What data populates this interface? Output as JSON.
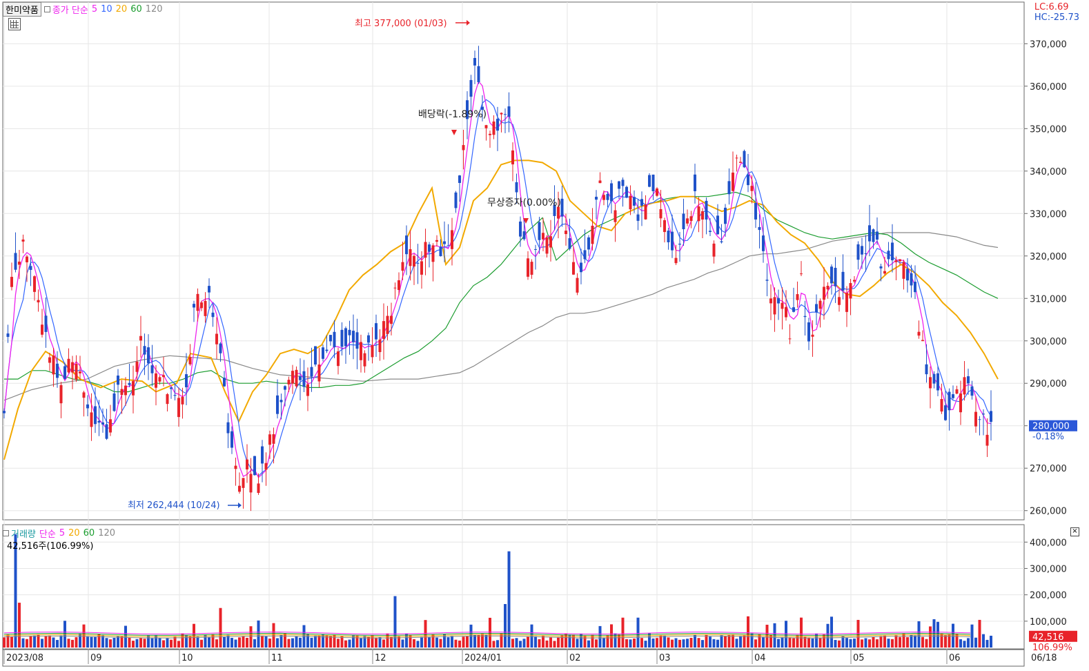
{
  "header": {
    "stock_name": "한미약품",
    "price_label": "종가 단순",
    "ma_periods": [
      "5",
      "10",
      "20",
      "60",
      "120"
    ]
  },
  "volume_header": {
    "title": "거래량",
    "ma_label": "단순",
    "ma_periods": [
      "5",
      "20",
      "60",
      "120"
    ],
    "info": "42,516주(106.99%)"
  },
  "lc_hc": {
    "lc": "LC:6.69",
    "hc": "HC:-25.73"
  },
  "colors": {
    "up": "#e8232a",
    "down": "#1f52c9",
    "ma5": "#ee22ee",
    "ma10": "#3366ff",
    "ma20": "#f2a900",
    "ma60": "#1a9c2e",
    "ma120": "#888888",
    "price_box": "#2b57d8",
    "vol_box": "#e8232a"
  },
  "current": {
    "price": "280,000",
    "change": "-0.18%",
    "volume": "42,516",
    "volume_ratio": "106.99%"
  },
  "chart_data": {
    "type": "candlestick",
    "x_axis_labels": [
      "2023/08",
      "09",
      "10",
      "11",
      "12",
      "2024/01",
      "02",
      "03",
      "04",
      "05",
      "06"
    ],
    "x_axis_end": "06/18",
    "price_ticks": [
      "370,000",
      "360,000",
      "350,000",
      "340,000",
      "330,000",
      "320,000",
      "310,000",
      "300,000",
      "290,000",
      "280,000",
      "270,000",
      "260,000"
    ],
    "price_ylim": [
      258000,
      379000
    ],
    "volume_ticks": [
      "400,000",
      "300,000",
      "200,000",
      "100,000"
    ],
    "volume_ylim": [
      0,
      440000
    ],
    "annotations": {
      "high": "최고 377,000 (01/03)",
      "low": "최저 262,444 (10/24)",
      "dividend": "배당락(-1.89%)",
      "bonus": "무상증자(0.00%)"
    },
    "ma_series": {
      "ma20": [
        [
          0,
          272000
        ],
        [
          20,
          284000
        ],
        [
          40,
          293000
        ],
        [
          60,
          297500
        ],
        [
          85,
          295000
        ],
        [
          110,
          291000
        ],
        [
          140,
          289000
        ],
        [
          170,
          291000
        ],
        [
          200,
          290500
        ],
        [
          220,
          288000
        ],
        [
          250,
          290000
        ],
        [
          270,
          297000
        ],
        [
          300,
          296000
        ],
        [
          320,
          288000
        ],
        [
          340,
          281000
        ],
        [
          360,
          288000
        ],
        [
          380,
          292000
        ],
        [
          400,
          297000
        ],
        [
          420,
          298000
        ],
        [
          440,
          297000
        ],
        [
          460,
          299000
        ],
        [
          480,
          305000
        ],
        [
          500,
          312000
        ],
        [
          520,
          315500
        ],
        [
          540,
          318000
        ],
        [
          560,
          321000
        ],
        [
          580,
          323000
        ],
        [
          600,
          330000
        ],
        [
          620,
          336000
        ],
        [
          640,
          318000
        ],
        [
          660,
          322000
        ],
        [
          680,
          333000
        ],
        [
          700,
          336000
        ],
        [
          720,
          341500
        ],
        [
          740,
          342500
        ],
        [
          760,
          342500
        ],
        [
          780,
          342000
        ],
        [
          800,
          340000
        ],
        [
          820,
          333000
        ],
        [
          840,
          330000
        ],
        [
          860,
          327000
        ],
        [
          880,
          326000
        ],
        [
          900,
          330000
        ],
        [
          920,
          331500
        ],
        [
          940,
          332500
        ],
        [
          960,
          333000
        ],
        [
          980,
          334000
        ],
        [
          1000,
          334000
        ],
        [
          1020,
          332000
        ],
        [
          1040,
          330500
        ],
        [
          1060,
          331500
        ],
        [
          1080,
          333000
        ],
        [
          1100,
          332000
        ],
        [
          1120,
          328000
        ],
        [
          1140,
          325000
        ],
        [
          1160,
          323000
        ],
        [
          1180,
          319000
        ],
        [
          1200,
          314000
        ],
        [
          1220,
          311000
        ],
        [
          1240,
          310500
        ],
        [
          1260,
          313000
        ],
        [
          1280,
          316000
        ],
        [
          1300,
          318000
        ],
        [
          1320,
          316000
        ],
        [
          1340,
          313000
        ],
        [
          1360,
          309000
        ],
        [
          1380,
          306000
        ],
        [
          1400,
          302000
        ],
        [
          1420,
          297000
        ],
        [
          1440,
          291000
        ]
      ],
      "ma60": [
        [
          0,
          291000
        ],
        [
          20,
          291000
        ],
        [
          40,
          293000
        ],
        [
          60,
          293000
        ],
        [
          80,
          292000
        ],
        [
          100,
          291000
        ],
        [
          120,
          290500
        ],
        [
          140,
          289500
        ],
        [
          160,
          288000
        ],
        [
          180,
          288000
        ],
        [
          200,
          289000
        ],
        [
          220,
          290000
        ],
        [
          240,
          290000
        ],
        [
          260,
          291000
        ],
        [
          280,
          292500
        ],
        [
          300,
          293000
        ],
        [
          320,
          291000
        ],
        [
          340,
          290000
        ],
        [
          360,
          290000
        ],
        [
          380,
          290500
        ],
        [
          400,
          290000
        ],
        [
          420,
          290000
        ],
        [
          440,
          289000
        ],
        [
          460,
          289000
        ],
        [
          480,
          289500
        ],
        [
          500,
          289500
        ],
        [
          520,
          290000
        ],
        [
          540,
          292000
        ],
        [
          560,
          294000
        ],
        [
          580,
          296000
        ],
        [
          600,
          297500
        ],
        [
          620,
          300000
        ],
        [
          640,
          303000
        ],
        [
          660,
          309000
        ],
        [
          680,
          313000
        ],
        [
          700,
          315000
        ],
        [
          720,
          318000
        ],
        [
          740,
          322000
        ],
        [
          760,
          326000
        ],
        [
          780,
          329000
        ],
        [
          800,
          319000
        ],
        [
          820,
          322000
        ],
        [
          840,
          325000
        ],
        [
          860,
          327000
        ],
        [
          880,
          328500
        ],
        [
          900,
          330000
        ],
        [
          920,
          331500
        ],
        [
          940,
          332500
        ],
        [
          960,
          333500
        ],
        [
          980,
          334000
        ],
        [
          1000,
          334000
        ],
        [
          1020,
          334000
        ],
        [
          1040,
          334500
        ],
        [
          1060,
          335000
        ],
        [
          1080,
          334000
        ],
        [
          1100,
          331000
        ],
        [
          1120,
          328500
        ],
        [
          1140,
          327000
        ],
        [
          1160,
          325500
        ],
        [
          1180,
          324500
        ],
        [
          1200,
          324000
        ],
        [
          1220,
          324500
        ],
        [
          1240,
          325000
        ],
        [
          1260,
          325500
        ],
        [
          1280,
          325000
        ],
        [
          1300,
          323000
        ],
        [
          1320,
          320500
        ],
        [
          1340,
          318500
        ],
        [
          1360,
          317000
        ],
        [
          1380,
          315500
        ],
        [
          1400,
          313500
        ],
        [
          1420,
          311500
        ],
        [
          1440,
          310000
        ]
      ],
      "ma120": [
        [
          0,
          286000
        ],
        [
          40,
          288500
        ],
        [
          80,
          290000
        ],
        [
          120,
          291000
        ],
        [
          160,
          294000
        ],
        [
          200,
          295500
        ],
        [
          240,
          296500
        ],
        [
          280,
          296000
        ],
        [
          320,
          295500
        ],
        [
          360,
          293500
        ],
        [
          400,
          292000
        ],
        [
          440,
          291500
        ],
        [
          480,
          291000
        ],
        [
          520,
          290500
        ],
        [
          560,
          291000
        ],
        [
          600,
          291000
        ],
        [
          640,
          292000
        ],
        [
          660,
          292500
        ],
        [
          680,
          294000
        ],
        [
          700,
          296000
        ],
        [
          720,
          298000
        ],
        [
          740,
          300000
        ],
        [
          760,
          302000
        ],
        [
          780,
          303500
        ],
        [
          800,
          305500
        ],
        [
          820,
          306500
        ],
        [
          840,
          306500
        ],
        [
          860,
          307000
        ],
        [
          880,
          308000
        ],
        [
          900,
          309000
        ],
        [
          920,
          310000
        ],
        [
          940,
          311000
        ],
        [
          960,
          312500
        ],
        [
          980,
          313500
        ],
        [
          1000,
          314500
        ],
        [
          1020,
          316000
        ],
        [
          1040,
          317000
        ],
        [
          1060,
          318500
        ],
        [
          1080,
          320000
        ],
        [
          1100,
          320500
        ],
        [
          1120,
          320500
        ],
        [
          1140,
          321000
        ],
        [
          1160,
          321500
        ],
        [
          1180,
          322500
        ],
        [
          1200,
          323500
        ],
        [
          1220,
          324000
        ],
        [
          1240,
          324500
        ],
        [
          1260,
          325000
        ],
        [
          1280,
          325500
        ],
        [
          1300,
          325500
        ],
        [
          1320,
          325500
        ],
        [
          1340,
          325500
        ],
        [
          1360,
          325000
        ],
        [
          1380,
          324500
        ],
        [
          1400,
          323500
        ],
        [
          1420,
          322500
        ],
        [
          1440,
          322000
        ]
      ]
    }
  }
}
